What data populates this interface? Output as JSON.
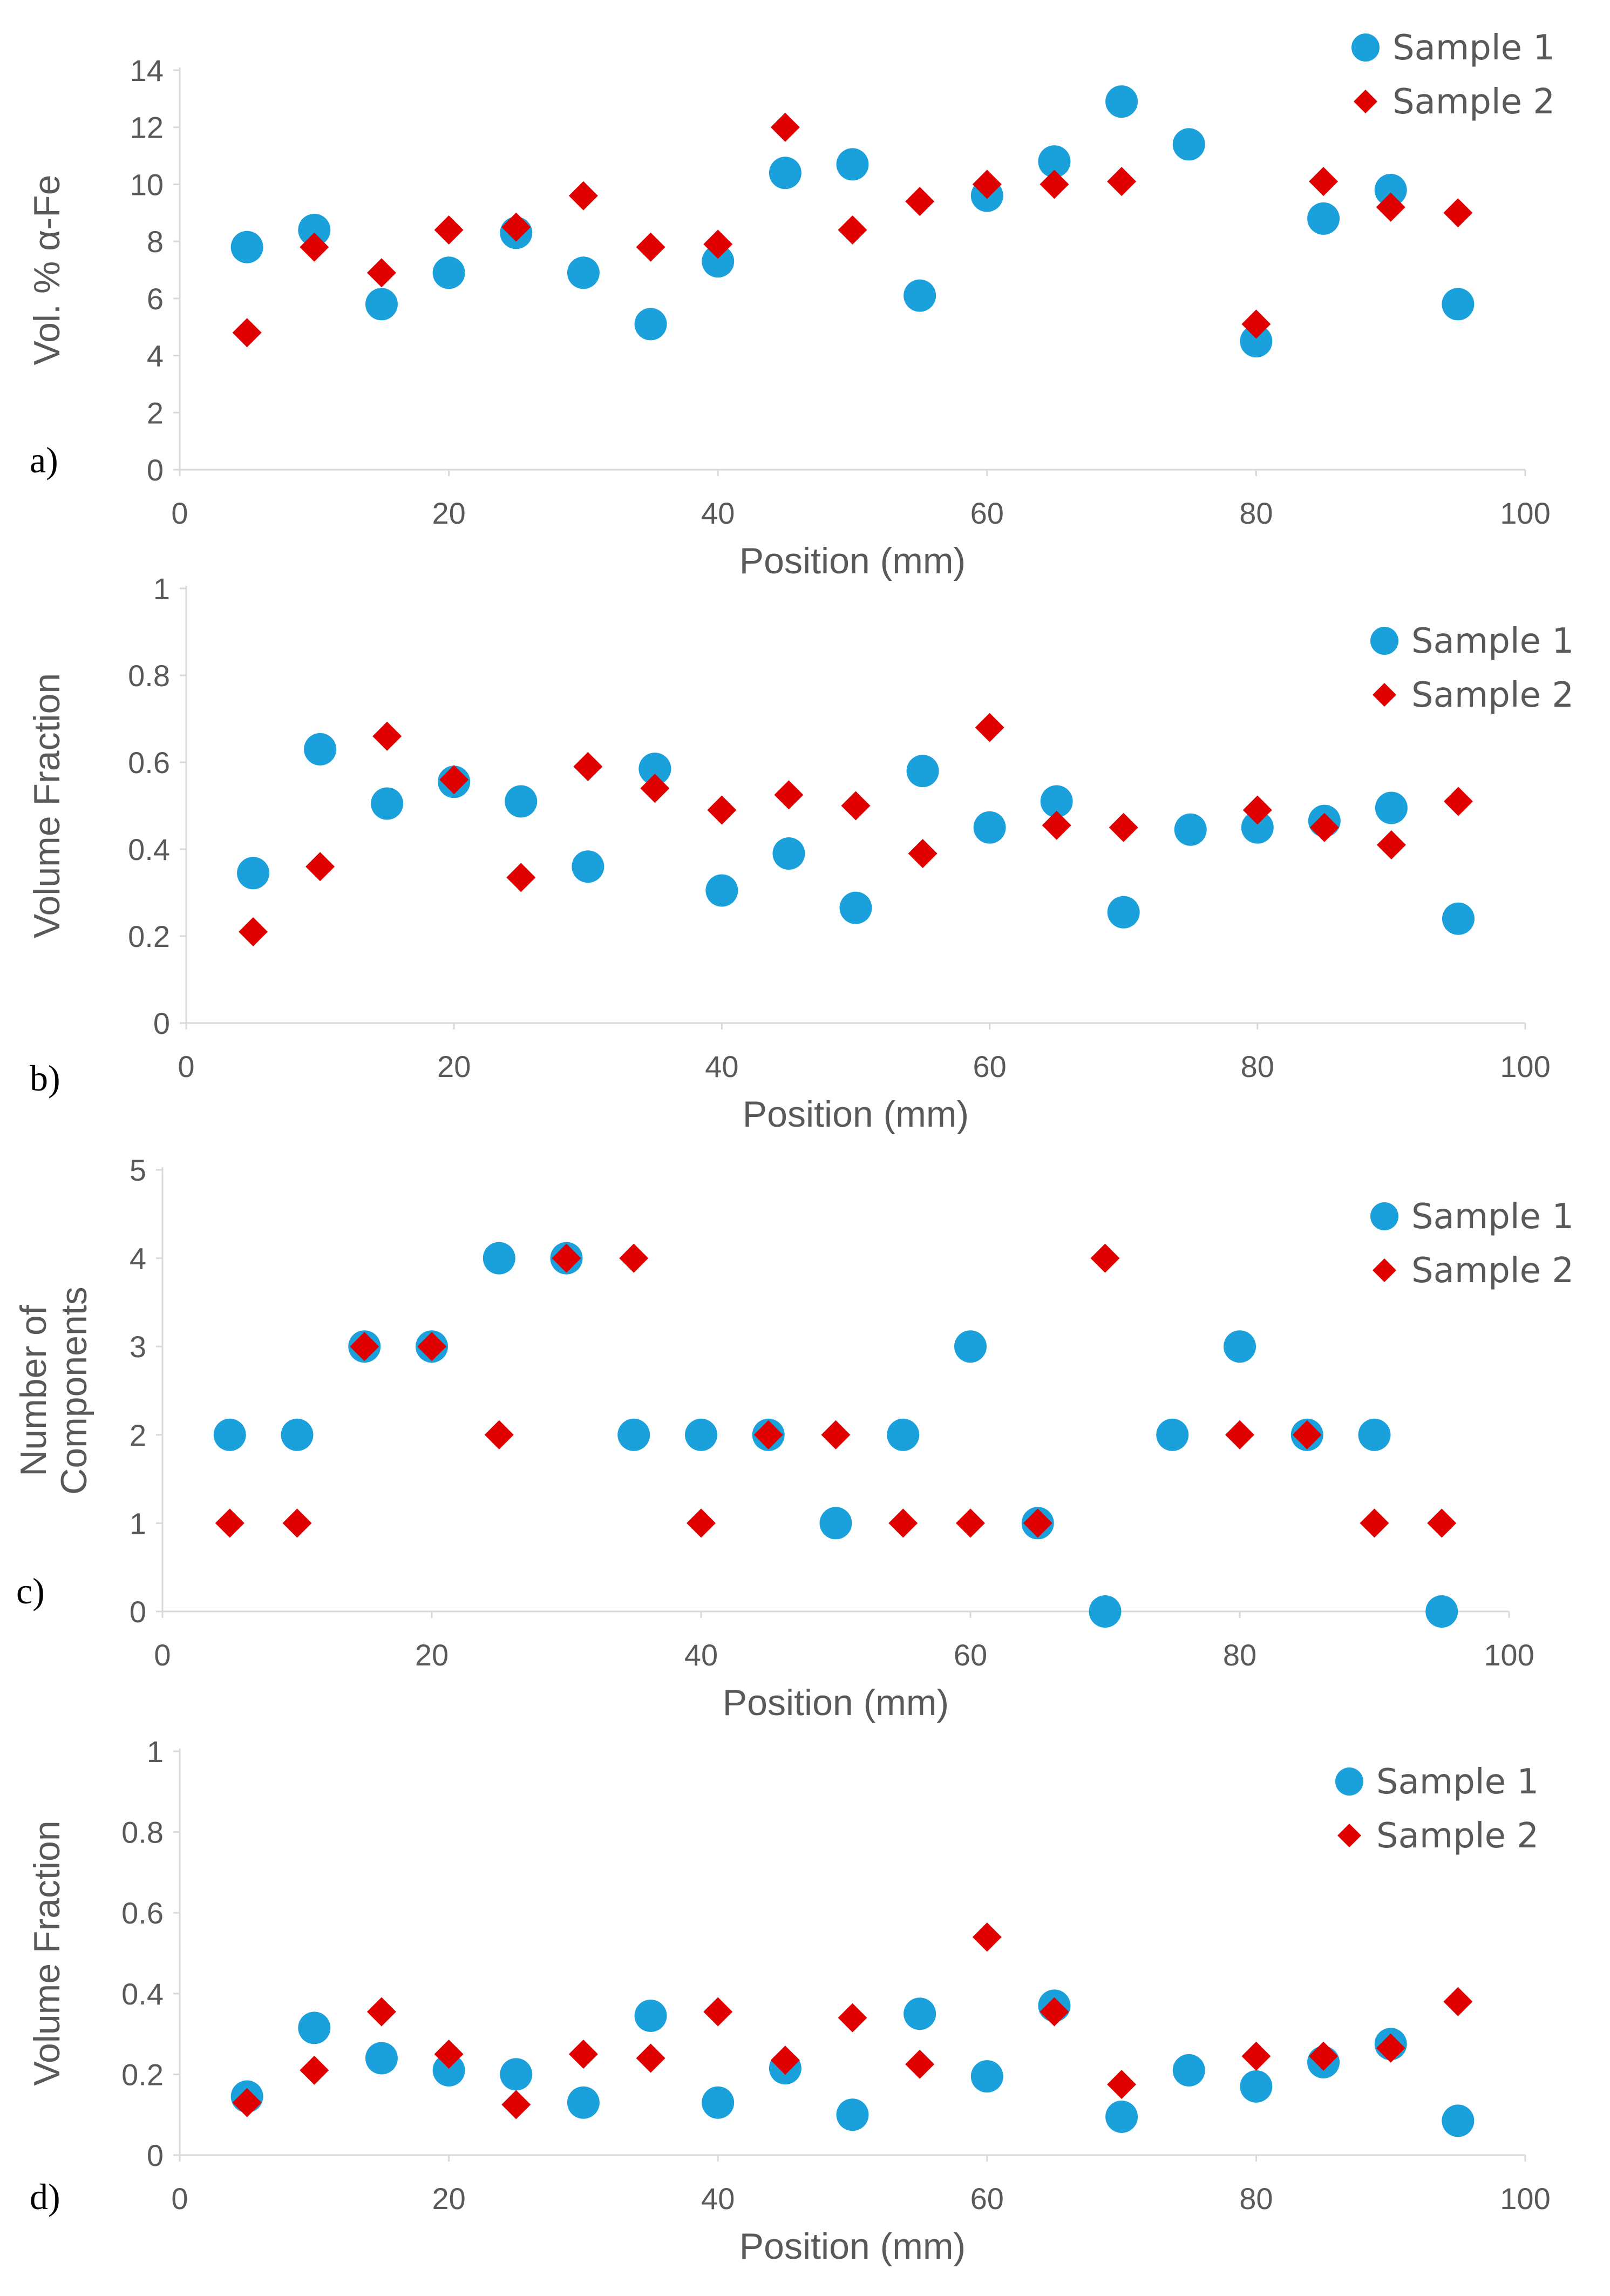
{
  "colors": {
    "sample1": "#1aa0db",
    "sample2": "#e00000",
    "axis": "#d9d9d9",
    "text": "#595959"
  },
  "chart_data": [
    {
      "type": "scatter",
      "panel_label": "a)",
      "xlabel": "Position (mm)",
      "ylabel": [
        "Vol. % α-Fe"
      ],
      "xlim": [
        0,
        100
      ],
      "xticks": [
        0,
        20,
        40,
        60,
        80,
        100
      ],
      "ylim": [
        0,
        14
      ],
      "yticks": [
        0,
        2,
        4,
        6,
        8,
        10,
        12,
        14
      ],
      "grid": false,
      "legend_position": "top-right",
      "x": [
        5,
        10,
        15,
        20,
        25,
        30,
        35,
        40,
        45,
        50,
        55,
        60,
        65,
        70,
        75,
        80,
        85,
        90,
        95
      ],
      "series": [
        {
          "name": "Sample 1",
          "marker": "circle",
          "color": "#1aa0db",
          "values": [
            7.8,
            8.4,
            5.8,
            6.9,
            8.3,
            6.9,
            5.1,
            7.3,
            10.4,
            10.7,
            6.1,
            9.6,
            10.8,
            12.9,
            11.4,
            4.5,
            8.8,
            9.8,
            5.8
          ]
        },
        {
          "name": "Sample 2",
          "marker": "diamond",
          "color": "#e00000",
          "values": [
            4.8,
            7.8,
            6.9,
            8.4,
            8.5,
            9.6,
            7.8,
            7.9,
            12.0,
            8.4,
            9.4,
            10.0,
            10.0,
            10.1,
            null,
            5.1,
            10.1,
            9.2,
            9.0
          ]
        }
      ]
    },
    {
      "type": "scatter",
      "panel_label": "b)",
      "xlabel": "Position (mm)",
      "ylabel": [
        "Volume Fraction"
      ],
      "xlim": [
        0,
        100
      ],
      "xticks": [
        0,
        20,
        40,
        60,
        80,
        100
      ],
      "ylim": [
        0,
        1
      ],
      "yticks": [
        0,
        0.2,
        0.4,
        0.6,
        0.8,
        1
      ],
      "grid": false,
      "legend_position": "top-right",
      "x": [
        5,
        10,
        15,
        20,
        25,
        30,
        35,
        40,
        45,
        50,
        55,
        60,
        65,
        70,
        75,
        80,
        85,
        90,
        95
      ],
      "series": [
        {
          "name": "Sample 1",
          "marker": "circle",
          "color": "#1aa0db",
          "values": [
            0.345,
            0.63,
            0.505,
            0.555,
            0.51,
            0.36,
            0.585,
            0.305,
            0.39,
            0.265,
            0.58,
            0.45,
            0.51,
            0.255,
            0.445,
            0.45,
            0.465,
            0.495,
            0.24
          ]
        },
        {
          "name": "Sample 2",
          "marker": "diamond",
          "color": "#e00000",
          "values": [
            0.21,
            0.36,
            0.66,
            0.56,
            0.335,
            0.59,
            0.54,
            0.49,
            0.525,
            0.5,
            0.39,
            0.68,
            0.455,
            0.45,
            null,
            0.49,
            0.45,
            0.41,
            0.51
          ]
        }
      ]
    },
    {
      "type": "scatter",
      "panel_label": "c)",
      "xlabel": "Position (mm)",
      "ylabel": [
        "Number of",
        "Components"
      ],
      "xlim": [
        0,
        100
      ],
      "xticks": [
        0,
        20,
        40,
        60,
        80,
        100
      ],
      "ylim": [
        0,
        5
      ],
      "yticks": [
        0,
        1,
        2,
        3,
        4,
        5
      ],
      "grid": false,
      "legend_position": "top-right",
      "x": [
        5,
        10,
        15,
        20,
        25,
        30,
        35,
        40,
        45,
        50,
        55,
        60,
        65,
        70,
        75,
        80,
        85,
        90,
        95
      ],
      "series": [
        {
          "name": "Sample 1",
          "marker": "circle",
          "color": "#1aa0db",
          "values": [
            2,
            2,
            3,
            3,
            4,
            4,
            2,
            2,
            2,
            1,
            2,
            3,
            1,
            0,
            2,
            3,
            2,
            2,
            0
          ]
        },
        {
          "name": "Sample 2",
          "marker": "diamond",
          "color": "#e00000",
          "values": [
            1,
            1,
            3,
            3,
            2,
            4,
            4,
            1,
            2,
            2,
            1,
            1,
            1,
            4,
            null,
            2,
            2,
            1,
            1
          ]
        }
      ]
    },
    {
      "type": "scatter",
      "panel_label": "d)",
      "xlabel": "Position (mm)",
      "ylabel": [
        "Volume Fraction"
      ],
      "xlim": [
        0,
        100
      ],
      "xticks": [
        0,
        20,
        40,
        60,
        80,
        100
      ],
      "ylim": [
        0,
        1
      ],
      "yticks": [
        0,
        0.2,
        0.4,
        0.6,
        0.8,
        1
      ],
      "grid": false,
      "legend_position": "top-right",
      "x": [
        5,
        10,
        15,
        20,
        25,
        30,
        35,
        40,
        45,
        50,
        55,
        60,
        65,
        70,
        75,
        80,
        85,
        90,
        95
      ],
      "series": [
        {
          "name": "Sample 1",
          "marker": "circle",
          "color": "#1aa0db",
          "values": [
            0.145,
            0.315,
            0.24,
            0.21,
            0.2,
            0.13,
            0.345,
            0.13,
            0.215,
            0.1,
            0.35,
            0.195,
            0.37,
            0.095,
            0.21,
            0.17,
            0.23,
            0.275,
            0.085
          ]
        },
        {
          "name": "Sample 2",
          "marker": "diamond",
          "color": "#e00000",
          "values": [
            0.13,
            0.21,
            0.355,
            0.25,
            0.125,
            0.25,
            0.24,
            0.355,
            0.235,
            0.34,
            0.225,
            0.54,
            0.355,
            0.175,
            null,
            0.245,
            0.245,
            0.265,
            0.38
          ]
        }
      ]
    }
  ]
}
